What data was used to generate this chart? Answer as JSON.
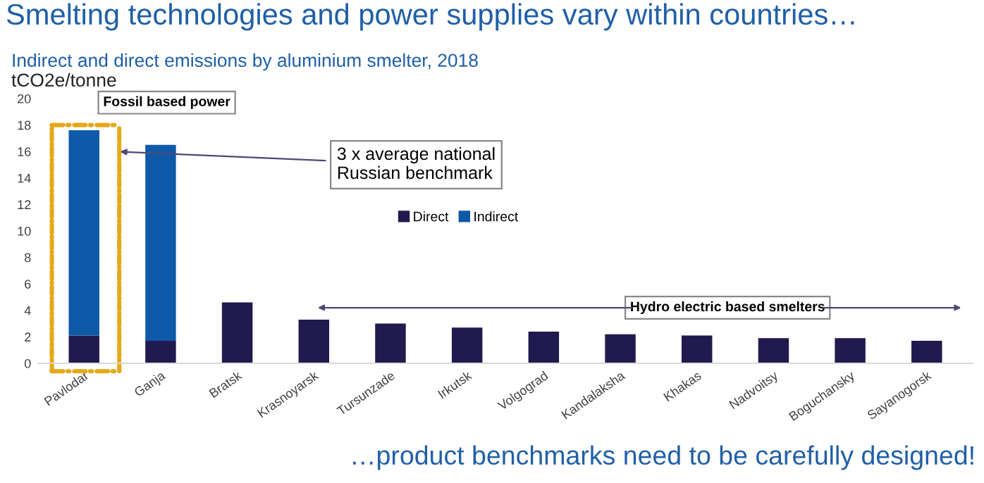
{
  "chart_data": {
    "type": "bar",
    "stacked": true,
    "title": "Smelting technologies and power supplies vary within countries…",
    "subtitle": "Indirect and direct emissions by aluminium smelter, 2018",
    "ylabel": "tCO2e/tonne",
    "categories": [
      "Pavlodar",
      "Ganja",
      "Bratsk",
      "Krasnoyarsk",
      "Tursunzade",
      "Irkutsk",
      "Volgograd",
      "Kandalaksha",
      "Khakas",
      "Nadvoitsy",
      "Boguchansky",
      "Sayanogorsk"
    ],
    "series": [
      {
        "name": "Direct",
        "color": "#211a4f",
        "values": [
          2.1,
          1.7,
          4.6,
          3.3,
          3.0,
          2.7,
          2.4,
          2.2,
          2.1,
          1.9,
          1.9,
          1.7
        ]
      },
      {
        "name": "Indirect",
        "color": "#0f5aa8",
        "values": [
          15.5,
          14.8,
          null,
          null,
          null,
          null,
          null,
          null,
          null,
          null,
          null,
          null
        ]
      }
    ],
    "ylim": [
      0,
      20
    ],
    "yticks": [
      0,
      2,
      4,
      6,
      8,
      10,
      12,
      14,
      16,
      18,
      20
    ],
    "grid": false,
    "legend": "center",
    "annotations": [
      "Fossil based power",
      "3 x average national\nRussian benchmark",
      "Hydro electric based smelters",
      "…product benchmarks need to be carefully designed!"
    ]
  }
}
